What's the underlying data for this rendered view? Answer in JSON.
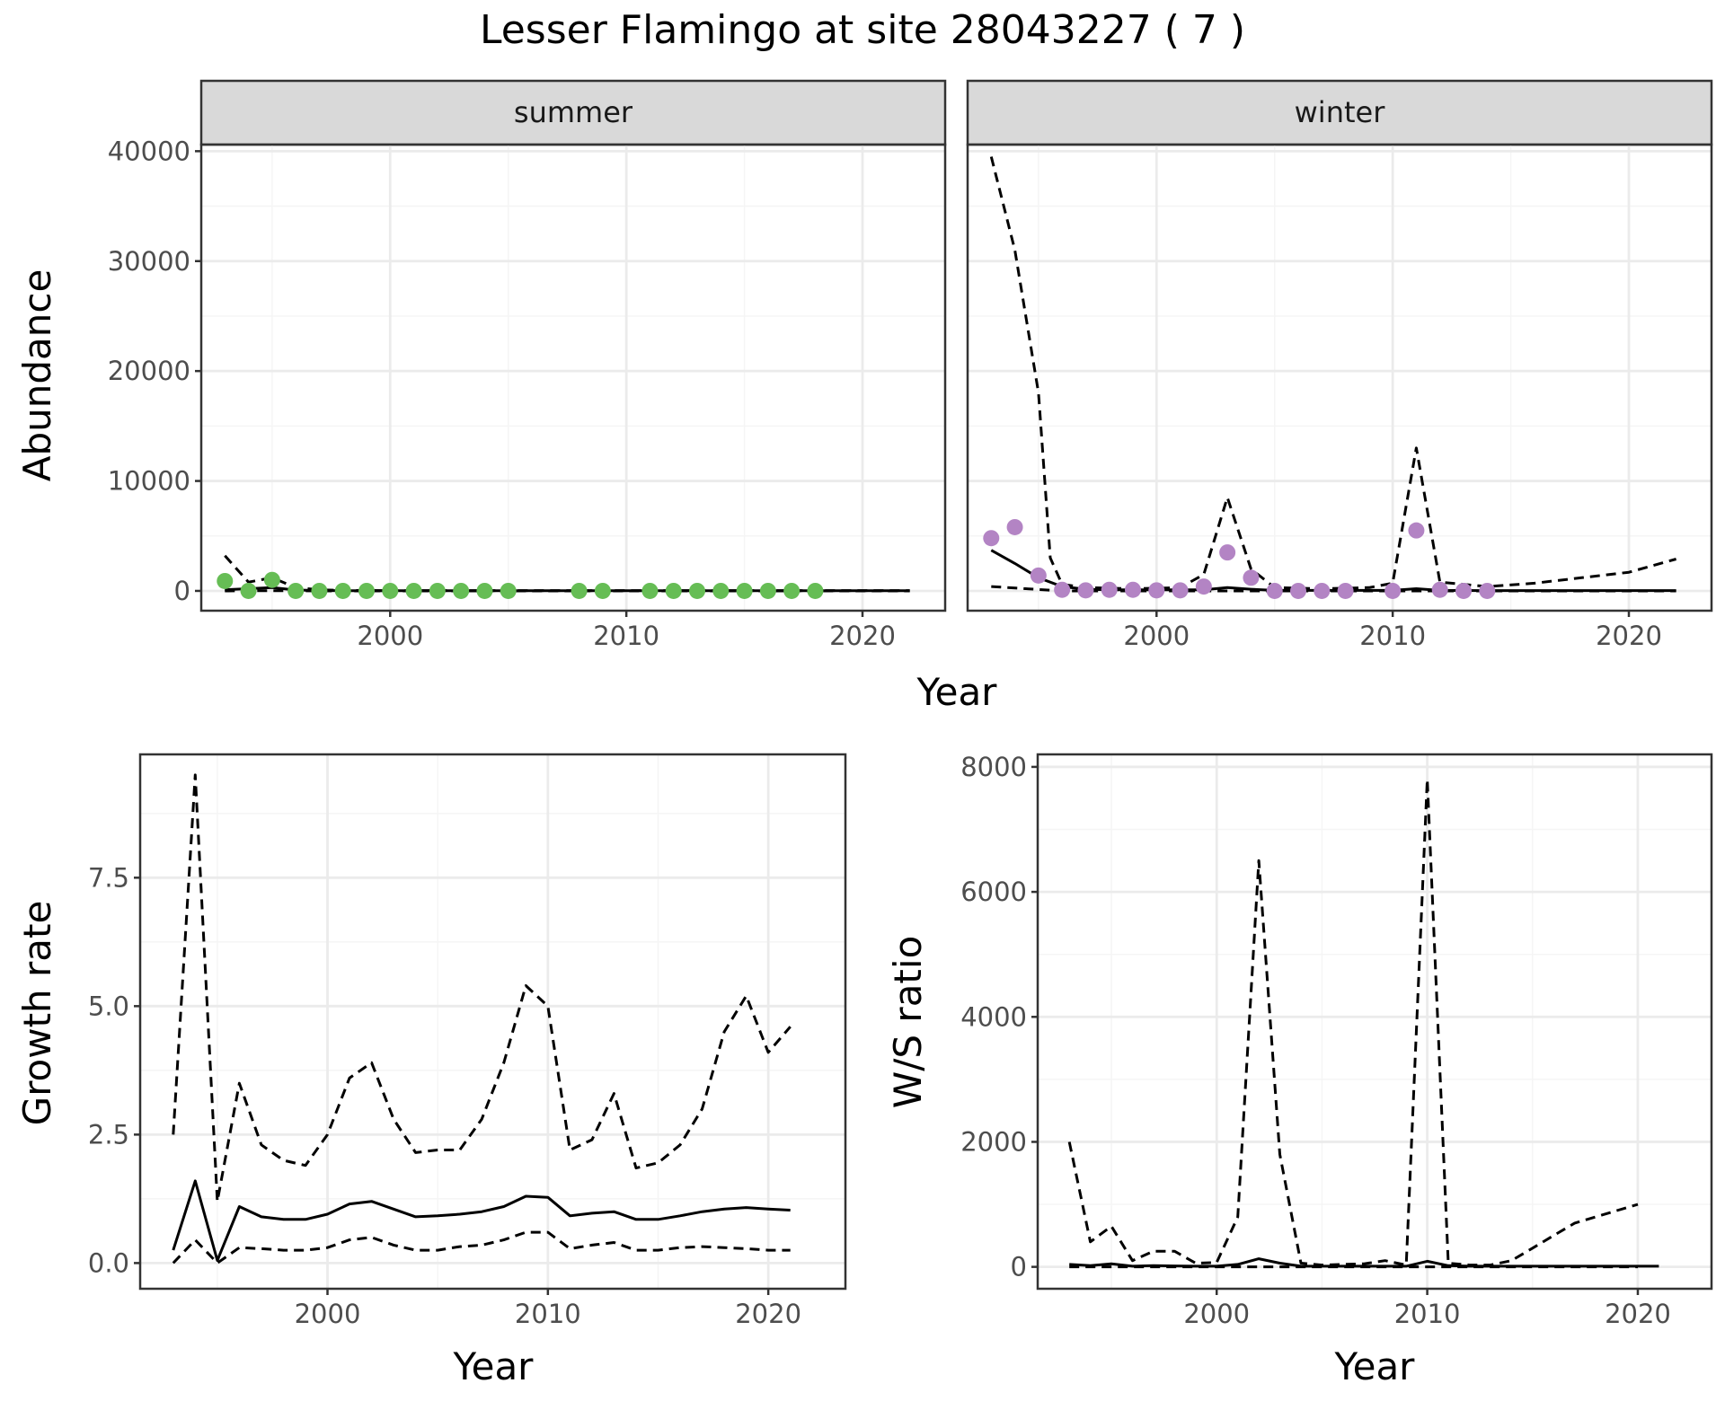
{
  "title": "Lesser Flamingo at site 28043227 ( 7 )",
  "colors": {
    "summer_points": "#66BD55",
    "winter_points": "#B384C4",
    "lines": "#000000",
    "grid_major": "#EBEBEB",
    "grid_minor": "#F5F5F5",
    "strip_fill": "#D9D9D9",
    "panel_border": "#333333"
  },
  "chart_data": [
    {
      "type": "scatter",
      "panel": "abundance",
      "ylabel": "Abundance",
      "xlabel": "Year",
      "xlim": [
        1992,
        2023.5
      ],
      "ylim": [
        -1800,
        40600
      ],
      "x_ticks": [
        2000,
        2010,
        2020
      ],
      "y_ticks": [
        0,
        10000,
        20000,
        30000,
        40000
      ],
      "grid": true,
      "facets": [
        {
          "strip": "summer",
          "points": {
            "x": [
              1993,
              1994,
              1995,
              1996,
              1997,
              1998,
              1999,
              2000,
              2001,
              2002,
              2003,
              2004,
              2005,
              2008,
              2009,
              2011,
              2012,
              2013,
              2014,
              2015,
              2016,
              2017,
              2018
            ],
            "y": [
              900,
              0,
              1000,
              0,
              0,
              0,
              0,
              0,
              0,
              0,
              0,
              0,
              0,
              0,
              0,
              0,
              0,
              0,
              0,
              0,
              0,
              0,
              0
            ]
          },
          "lines": [
            {
              "style": "solid",
              "x": [
                1993,
                1994,
                1995,
                1996,
                1997,
                1998,
                1999,
                2000,
                2002,
                2004,
                2006,
                2008,
                2010,
                2012,
                2014,
                2016,
                2018,
                2020,
                2022
              ],
              "y": [
                100,
                200,
                300,
                80,
                40,
                20,
                10,
                10,
                10,
                10,
                10,
                10,
                10,
                10,
                10,
                10,
                10,
                10,
                10
              ]
            },
            {
              "style": "dashed",
              "x": [
                1993,
                1994,
                1995,
                1996,
                1997,
                1998,
                2000,
                2002,
                2004,
                2006,
                2008,
                2010,
                2012,
                2014,
                2016,
                2018,
                2020,
                2022
              ],
              "y": [
                3200,
                800,
                1200,
                300,
                100,
                50,
                30,
                30,
                30,
                30,
                30,
                30,
                30,
                30,
                30,
                30,
                30,
                30
              ]
            },
            {
              "style": "dashed",
              "x": [
                1993,
                1995,
                1997,
                2000,
                2005,
                2010,
                2015,
                2020,
                2022
              ],
              "y": [
                0,
                20,
                0,
                0,
                0,
                0,
                0,
                0,
                0
              ]
            }
          ]
        },
        {
          "strip": "winter",
          "points": {
            "x": [
              1993,
              1994,
              1995,
              1996,
              1997,
              1998,
              1999,
              2000,
              2001,
              2002,
              2003,
              2004,
              2005,
              2006,
              2007,
              2008,
              2010,
              2011,
              2012,
              2013,
              2014
            ],
            "y": [
              4800,
              5800,
              1400,
              100,
              50,
              100,
              100,
              50,
              50,
              400,
              3500,
              1200,
              0,
              0,
              0,
              0,
              0,
              5500,
              100,
              0,
              0
            ]
          },
          "lines": [
            {
              "style": "solid",
              "x": [
                1993,
                1994,
                1995,
                1996,
                1997,
                1998,
                2000,
                2002,
                2003,
                2004,
                2005,
                2008,
                2010,
                2011,
                2012,
                2014,
                2016,
                2018,
                2020,
                2022
              ],
              "y": [
                3700,
                2500,
                1200,
                400,
                150,
                100,
                100,
                100,
                300,
                150,
                50,
                50,
                50,
                200,
                50,
                30,
                30,
                30,
                30,
                30
              ]
            },
            {
              "style": "dashed",
              "x": [
                1993,
                1994,
                1995,
                1995.5,
                1996,
                1997,
                1999,
                2001,
                2002,
                2003,
                2004,
                2005,
                2007,
                2009,
                2010,
                2011,
                2012,
                2014,
                2016,
                2018,
                2020,
                2022
              ],
              "y": [
                39500,
                31000,
                18000,
                3000,
                600,
                300,
                200,
                300,
                1500,
                8500,
                2000,
                300,
                200,
                300,
                700,
                13000,
                800,
                400,
                700,
                1200,
                1700,
                2900
              ]
            },
            {
              "style": "dashed",
              "x": [
                1993,
                1996,
                2000,
                2005,
                2010,
                2015,
                2020,
                2022
              ],
              "y": [
                400,
                0,
                0,
                0,
                0,
                0,
                0,
                0
              ]
            }
          ]
        }
      ]
    },
    {
      "type": "line",
      "panel": "growth",
      "ylabel": "Growth rate",
      "xlabel": "Year",
      "xlim": [
        1991.5,
        2023.5
      ],
      "ylim": [
        -0.5,
        9.9
      ],
      "x_ticks": [
        2000,
        2010,
        2020
      ],
      "y_ticks": [
        0.0,
        2.5,
        5.0,
        7.5
      ],
      "y_tick_labels": [
        "0.0",
        "2.5",
        "5.0",
        "7.5"
      ],
      "grid": true,
      "series": [
        {
          "style": "solid",
          "x": [
            1993,
            1994,
            1995,
            1996,
            1997,
            1998,
            1999,
            2000,
            2001,
            2002,
            2003,
            2004,
            2005,
            2006,
            2007,
            2008,
            2009,
            2010,
            2011,
            2012,
            2013,
            2014,
            2015,
            2016,
            2017,
            2018,
            2019,
            2020,
            2021
          ],
          "y": [
            0.25,
            1.6,
            0.05,
            1.1,
            0.9,
            0.85,
            0.85,
            0.95,
            1.15,
            1.2,
            1.05,
            0.9,
            0.92,
            0.95,
            1.0,
            1.1,
            1.3,
            1.28,
            0.92,
            0.97,
            1.0,
            0.85,
            0.85,
            0.92,
            1.0,
            1.05,
            1.08,
            1.05,
            1.03
          ]
        },
        {
          "style": "dashed",
          "x": [
            1993,
            1994,
            1995,
            1996,
            1997,
            1998,
            1999,
            2000,
            2001,
            2002,
            2003,
            2004,
            2005,
            2006,
            2007,
            2008,
            2009,
            2010,
            2011,
            2012,
            2013,
            2014,
            2015,
            2016,
            2017,
            2018,
            2019,
            2020,
            2021
          ],
          "y": [
            2.5,
            9.5,
            1.2,
            3.5,
            2.3,
            2.0,
            1.9,
            2.5,
            3.6,
            3.9,
            2.8,
            2.15,
            2.2,
            2.2,
            2.8,
            3.9,
            5.4,
            5.0,
            2.2,
            2.4,
            3.3,
            1.85,
            1.95,
            2.3,
            3.0,
            4.5,
            5.2,
            4.1,
            4.6
          ]
        },
        {
          "style": "dashed",
          "x": [
            1993,
            1994,
            1995,
            1996,
            1997,
            1998,
            1999,
            2000,
            2001,
            2002,
            2003,
            2004,
            2005,
            2006,
            2007,
            2008,
            2009,
            2010,
            2011,
            2012,
            2013,
            2014,
            2015,
            2016,
            2017,
            2018,
            2019,
            2020,
            2021
          ],
          "y": [
            0.0,
            0.45,
            0.0,
            0.3,
            0.28,
            0.25,
            0.25,
            0.3,
            0.45,
            0.5,
            0.35,
            0.25,
            0.25,
            0.32,
            0.35,
            0.45,
            0.6,
            0.6,
            0.28,
            0.35,
            0.4,
            0.25,
            0.25,
            0.3,
            0.32,
            0.3,
            0.28,
            0.25,
            0.25
          ]
        }
      ]
    },
    {
      "type": "line",
      "panel": "ratio",
      "ylabel": "W/S ratio",
      "xlabel": "Year",
      "xlim": [
        1991.5,
        2023.5
      ],
      "ylim": [
        -350,
        8200
      ],
      "x_ticks": [
        2000,
        2010,
        2020
      ],
      "y_ticks": [
        0,
        2000,
        4000,
        6000,
        8000
      ],
      "grid": true,
      "series": [
        {
          "style": "solid",
          "x": [
            1993,
            1994,
            1995,
            1996,
            1997,
            1998,
            1999,
            2000,
            2001,
            2002,
            2003,
            2004,
            2005,
            2006,
            2007,
            2008,
            2009,
            2010,
            2011,
            2012,
            2014,
            2016,
            2018,
            2020,
            2021
          ],
          "y": [
            40,
            20,
            50,
            10,
            20,
            15,
            10,
            10,
            40,
            130,
            60,
            10,
            10,
            10,
            10,
            10,
            10,
            90,
            20,
            10,
            10,
            10,
            10,
            10,
            10
          ]
        },
        {
          "style": "dashed",
          "x": [
            1993,
            1994,
            1995,
            1996,
            1997,
            1998,
            1999,
            2000,
            2001,
            2002,
            2003,
            2004,
            2005,
            2006,
            2007,
            2008,
            2009,
            2010,
            2011,
            2012,
            2013,
            2014,
            2015,
            2016,
            2017,
            2018,
            2019,
            2020
          ],
          "y": [
            2000,
            400,
            650,
            100,
            250,
            250,
            60,
            70,
            800,
            6500,
            1800,
            60,
            30,
            40,
            50,
            100,
            30,
            7800,
            60,
            30,
            30,
            100,
            300,
            500,
            700,
            800,
            900,
            1000
          ]
        },
        {
          "style": "dashed",
          "x": [
            1993,
            1996,
            2000,
            2005,
            2010,
            2015,
            2020
          ],
          "y": [
            0,
            0,
            0,
            0,
            0,
            0,
            0
          ]
        }
      ]
    }
  ]
}
